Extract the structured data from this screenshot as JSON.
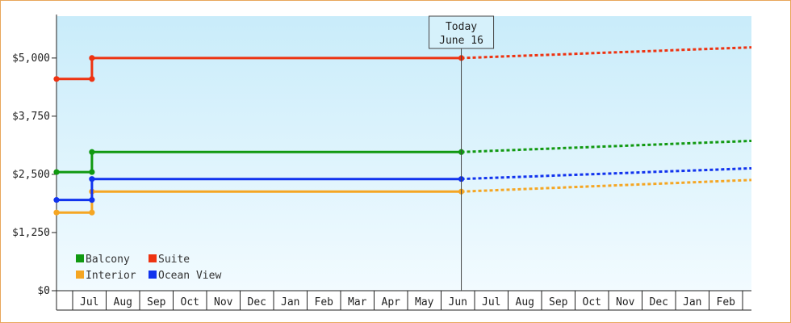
{
  "chart_data": {
    "type": "line",
    "today_label": [
      "Today",
      "June 16"
    ],
    "y_ticks": [
      "$0",
      "$1,250",
      "$2,500",
      "$3,750",
      "$5,000"
    ],
    "ylim": [
      0,
      5900
    ],
    "x_labels": [
      "Jul",
      "Aug",
      "Sep",
      "Oct",
      "Nov",
      "Dec",
      "Jan",
      "Feb",
      "Mar",
      "Apr",
      "May",
      "Jun",
      "Jul",
      "Aug",
      "Sep",
      "Oct",
      "Nov",
      "Dec",
      "Jan",
      "Feb"
    ],
    "x_range_months": [
      0,
      20.6
    ],
    "today_x": 12.0,
    "change_x": 1.05,
    "grid": false,
    "legend_position": "bottom-left",
    "series": [
      {
        "name": "Balcony",
        "color": "#119911",
        "history": [
          [
            0,
            2550
          ],
          [
            1.05,
            2550
          ],
          [
            1.05,
            2980
          ],
          [
            12.0,
            2980
          ]
        ],
        "forecast_end": [
          20.6,
          3220
        ]
      },
      {
        "name": "Suite",
        "color": "#ee3311",
        "history": [
          [
            0,
            4550
          ],
          [
            1.05,
            4550
          ],
          [
            1.05,
            5000
          ],
          [
            12.0,
            5000
          ]
        ],
        "forecast_end": [
          20.6,
          5230
        ]
      },
      {
        "name": "Interior",
        "color": "#f5a623",
        "history": [
          [
            0,
            1680
          ],
          [
            1.05,
            1680
          ],
          [
            1.05,
            2130
          ],
          [
            12.0,
            2130
          ]
        ],
        "forecast_end": [
          20.6,
          2380
        ]
      },
      {
        "name": "Ocean View",
        "color": "#1133ee",
        "history": [
          [
            0,
            1950
          ],
          [
            1.05,
            1950
          ],
          [
            1.05,
            2400
          ],
          [
            12.0,
            2400
          ]
        ],
        "forecast_end": [
          20.6,
          2630
        ]
      }
    ]
  }
}
